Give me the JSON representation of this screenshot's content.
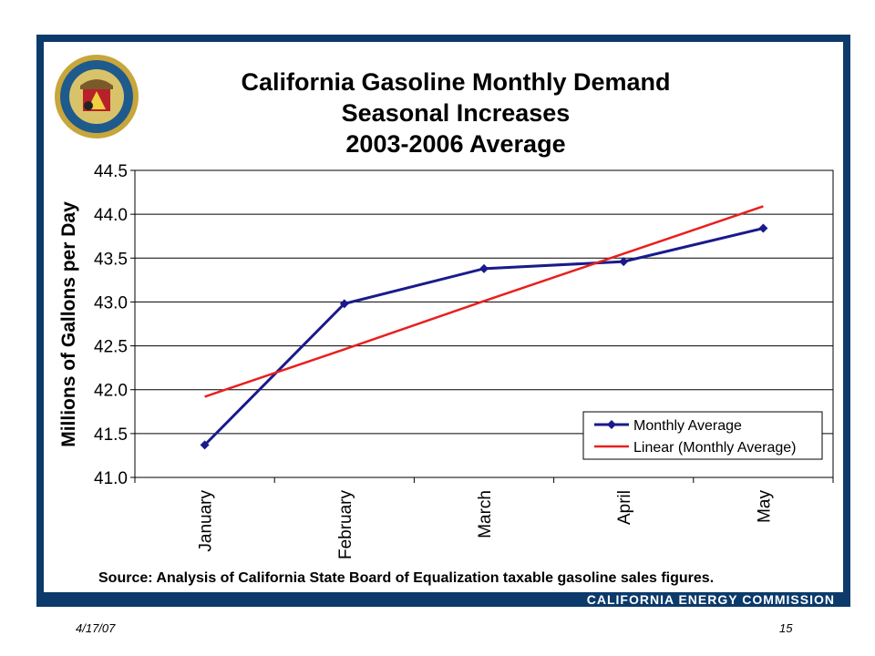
{
  "slide": {
    "title_lines": [
      "California Gasoline Monthly Demand",
      "Seasonal Increases",
      "2003-2006 Average"
    ],
    "source": "Source:  Analysis of California State Board of Equalization taxable gasoline sales figures.",
    "footer_brand": "CALIFORNIA ENERGY COMMISSION",
    "date": "4/17/07",
    "page_number": "15",
    "logo": "california-energy-commission-seal-icon",
    "colors": {
      "frame": "#0b3a6b",
      "series_monthly": "#1a1a8c",
      "series_linear": "#e8201e"
    }
  },
  "chart_data": {
    "type": "line",
    "categories": [
      "January",
      "February",
      "March",
      "April",
      "May"
    ],
    "series": [
      {
        "name": "Monthly Average",
        "values": [
          41.37,
          42.98,
          43.38,
          43.46,
          43.84
        ],
        "marker": "diamond"
      },
      {
        "name": "Linear (Monthly Average)",
        "values": [
          41.92,
          42.46,
          43.01,
          43.55,
          44.09
        ],
        "marker": "none"
      }
    ],
    "ylabel": "Millions of Gallons per Day",
    "ylim": [
      41.0,
      44.5
    ],
    "yticks": [
      "41.0",
      "41.5",
      "42.0",
      "42.5",
      "43.0",
      "43.5",
      "44.0",
      "44.5"
    ],
    "grid": true,
    "legend_position": "bottom-right"
  }
}
